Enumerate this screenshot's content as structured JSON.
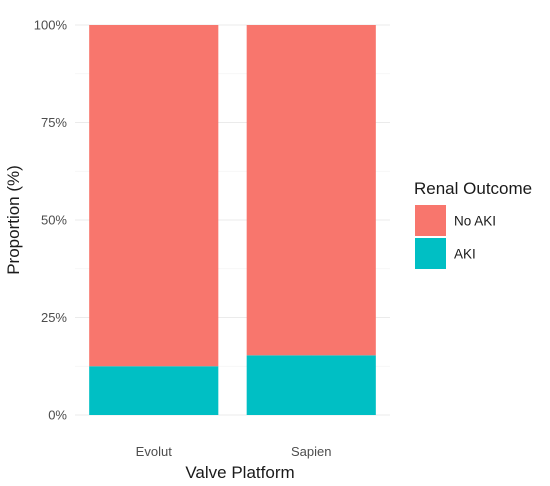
{
  "chart_data": {
    "type": "bar",
    "stacked": true,
    "normalized": true,
    "categories": [
      "Evolut",
      "Sapien"
    ],
    "series": [
      {
        "name": "AKI",
        "values": [
          12.5,
          15.3
        ],
        "color": "#00BFC4"
      },
      {
        "name": "No AKI",
        "values": [
          87.5,
          84.7
        ],
        "color": "#F8766D"
      }
    ],
    "xlabel": "Valve Platform",
    "ylabel": "Proportion (%)",
    "ylim": [
      0,
      100
    ],
    "y_ticks": [
      0,
      25,
      50,
      75,
      100
    ],
    "y_tick_labels": [
      "0%",
      "25%",
      "50%",
      "75%",
      "100%"
    ],
    "grid": true,
    "legend": {
      "title": "Renal Outcome",
      "position": "right",
      "entries": [
        {
          "label": "No AKI",
          "color": "#F8766D"
        },
        {
          "label": "AKI",
          "color": "#00BFC4"
        }
      ]
    }
  }
}
